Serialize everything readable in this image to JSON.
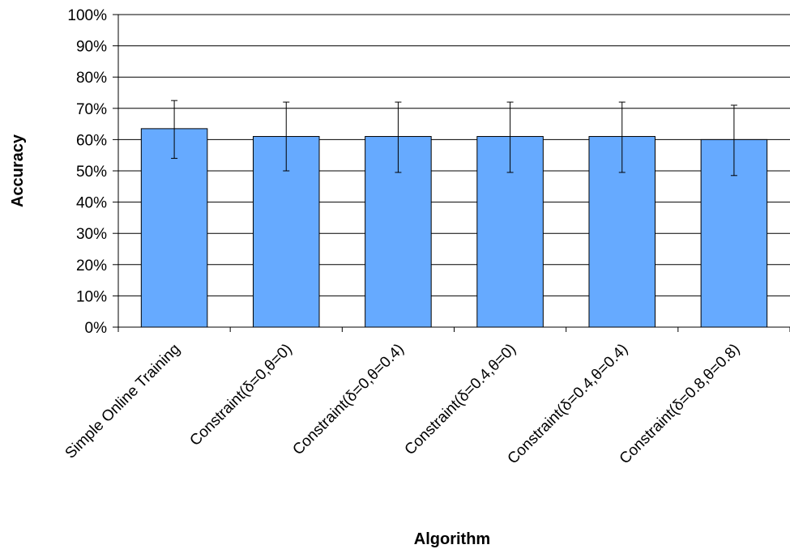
{
  "chart_data": {
    "type": "bar",
    "title": "",
    "xlabel": "Algorithm",
    "ylabel": "Accuracy",
    "categories": [
      "Simple Online Training",
      "Constraint(δ=0,θ=0)",
      "Constraint(δ=0,θ=0.4)",
      "Constraint(δ=0.4,θ=0)",
      "Constraint(δ=0.4,θ=0.4)",
      "Constraint(δ=0.8,θ=0.8)"
    ],
    "values": [
      63.5,
      61,
      61,
      61,
      61,
      60
    ],
    "error_low": [
      54,
      50,
      49.5,
      49.5,
      49.5,
      48.5
    ],
    "error_high": [
      72.5,
      72,
      72,
      72,
      72,
      71
    ],
    "ylim": [
      0,
      100
    ],
    "yticks": [
      "0%",
      "10%",
      "20%",
      "30%",
      "40%",
      "50%",
      "60%",
      "70%",
      "80%",
      "90%",
      "100%"
    ],
    "grid": true,
    "legend": "none",
    "bar_color": "#66aaff"
  }
}
